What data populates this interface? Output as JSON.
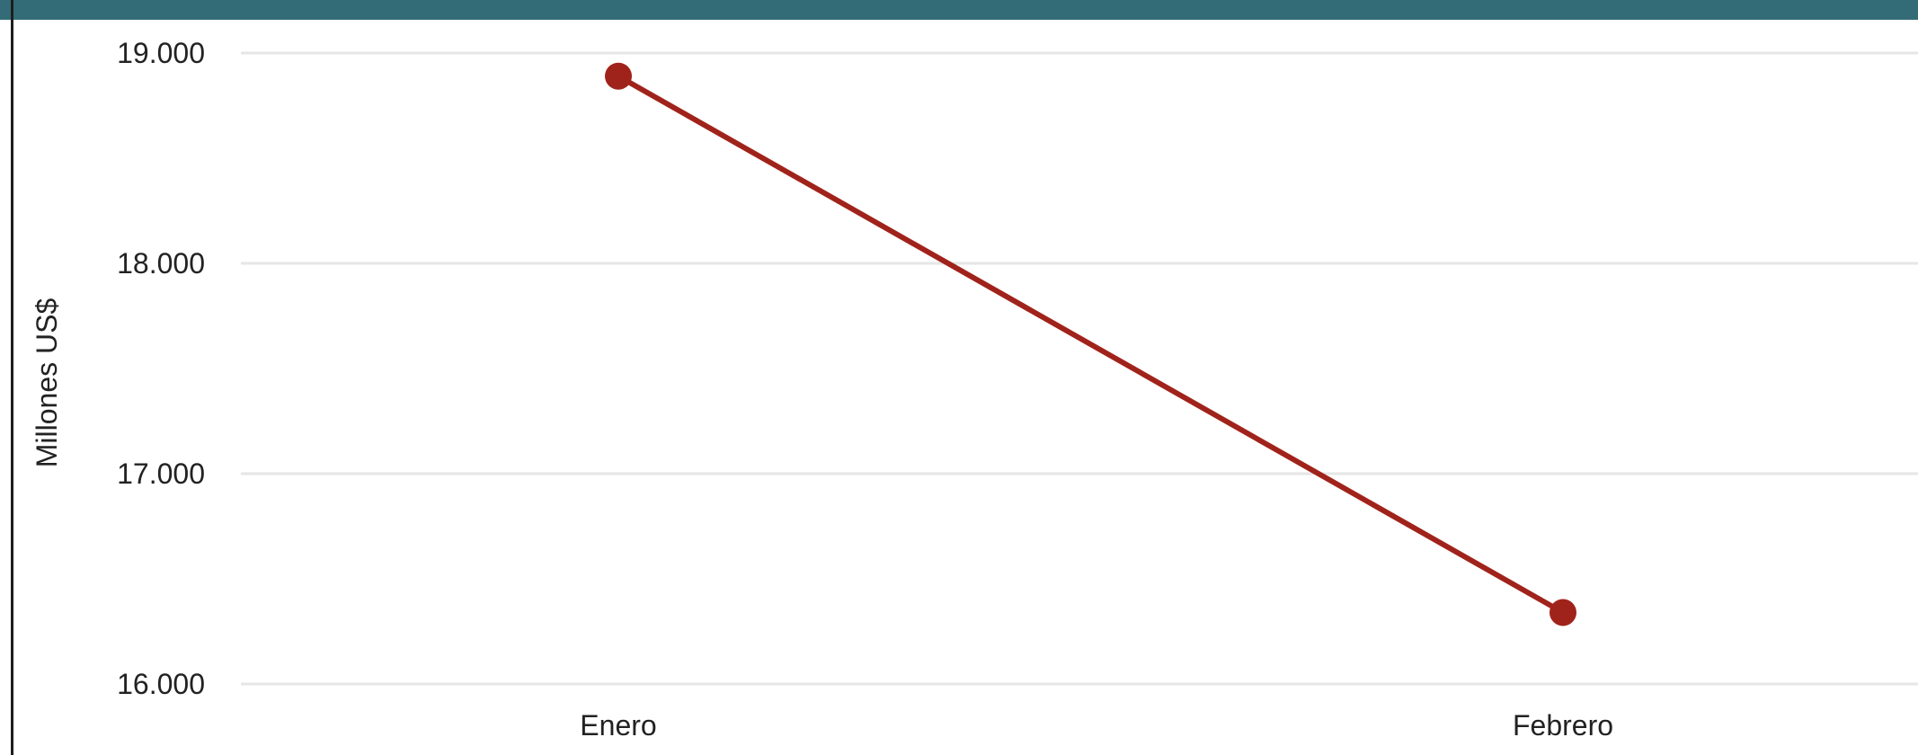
{
  "chart_data": {
    "type": "line",
    "categories": [
      "Enero",
      "Febrero"
    ],
    "series": [
      {
        "values": [
          18890,
          16340
        ],
        "color": "#a0231b"
      }
    ],
    "ylabel": "Millones US$",
    "xlabel": "",
    "ylim": [
      16000,
      19000
    ],
    "yticks": [
      16000,
      17000,
      18000,
      19000
    ],
    "ytick_labels": [
      "16.000",
      "17.000",
      "18.000",
      "19.000"
    ],
    "grid": true,
    "legend": "none"
  },
  "colors": {
    "header_band": "#336c76",
    "line": "#a0231b",
    "grid": "#e6e6e6"
  }
}
